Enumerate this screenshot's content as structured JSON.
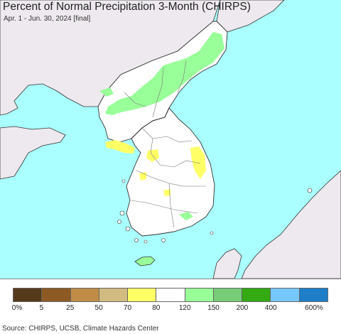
{
  "title": "Percent of Normal Precipitation 3-Month (CHIRPS)",
  "subtitle": "Apr. 1 - Jun. 30, 2024 [final]",
  "source": "Source: CHIRPS, UCSB, Climate Hazards Center",
  "colors": {
    "sea": "#aaffff",
    "foreign_land": "#ede9ee",
    "normal_land": "#ffffff",
    "border_line": "#333333",
    "province_line": "#777777"
  },
  "legend": {
    "bins": [
      {
        "color": "#54391a"
      },
      {
        "color": "#8c5a22"
      },
      {
        "color": "#c08c46"
      },
      {
        "color": "#d2bb80"
      },
      {
        "color": "#ffff66"
      },
      {
        "color": "#ffffff"
      },
      {
        "color": "#99ff99"
      },
      {
        "color": "#77cc77"
      },
      {
        "color": "#33aa11"
      },
      {
        "color": "#77c7ff"
      },
      {
        "color": "#1e7ec8"
      }
    ],
    "labels": [
      "0%",
      "5",
      "25",
      "50",
      "70",
      "80",
      "120",
      "150",
      "200",
      "400",
      "600%"
    ]
  }
}
